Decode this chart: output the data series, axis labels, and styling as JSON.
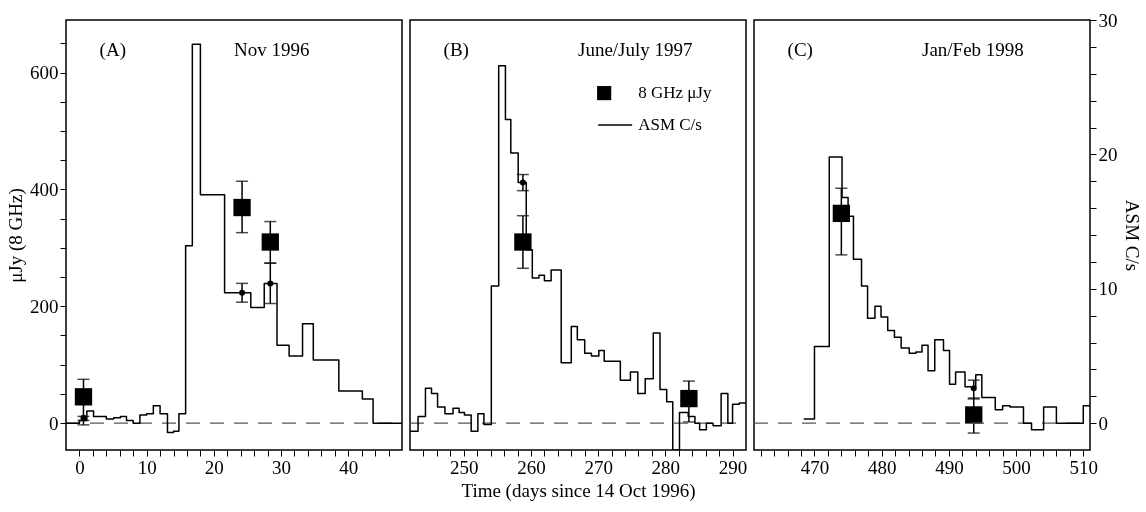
{
  "chart_data": [
    {
      "type": "step",
      "xlim": [
        -2,
        48
      ],
      "ylim": [
        -46,
        690
      ],
      "y2lim": [
        -2,
        30
      ],
      "ylabel": "μJy (8 GHz)",
      "grid": false,
      "legend": false,
      "xticks": [
        0,
        {
          "value": 2,
          "label": null
        },
        {
          "value": 4,
          "label": null
        },
        {
          "value": 6,
          "label": null
        },
        {
          "value": 8,
          "label": null
        },
        10,
        {
          "value": 12,
          "label": null
        },
        {
          "value": 14,
          "label": null
        },
        {
          "value": 16,
          "label": null
        },
        {
          "value": 18,
          "label": null
        },
        20,
        {
          "value": 22,
          "label": null
        },
        {
          "value": 24,
          "label": null
        },
        {
          "value": 26,
          "label": null
        },
        {
          "value": 28,
          "label": null
        },
        30,
        {
          "value": 32,
          "label": null
        },
        {
          "value": 34,
          "label": null
        },
        {
          "value": 36,
          "label": null
        },
        {
          "value": 38,
          "label": null
        },
        40,
        {
          "value": 42,
          "label": null
        },
        {
          "value": 44,
          "label": null
        },
        {
          "value": 46,
          "label": null
        }
      ],
      "yticks": [
        0,
        {
          "value": 50,
          "label": null
        },
        {
          "value": 100,
          "label": null
        },
        {
          "value": 150,
          "label": null
        },
        200,
        {
          "value": 250,
          "label": null
        },
        {
          "value": 300,
          "label": null
        },
        {
          "value": 350,
          "label": null
        },
        400,
        {
          "value": 450,
          "label": null
        },
        {
          "value": 500,
          "label": null
        },
        {
          "value": 550,
          "label": null
        },
        600,
        {
          "value": 650,
          "label": null
        }
      ],
      "annotations": [
        "(A)",
        "Nov 1996"
      ],
      "ref_lines": [
        {
          "axis": "y",
          "value": 0,
          "line_style": "dashed",
          "color": "#555555"
        }
      ],
      "series": [
        {
          "axis": "y2",
          "color": "#000000",
          "x": [
            -2,
            0,
            1.1,
            2.1,
            4,
            5.1,
            6.1,
            7,
            8,
            9,
            10,
            11,
            12,
            13.1,
            14,
            14.8,
            15.8,
            16.8,
            18,
            21.6,
            25.5,
            27.5,
            29.4,
            31.2,
            33.2,
            34.8,
            38.6,
            42.1,
            43.7,
            48
          ],
          "values": [
            0,
            0.2,
            0.9,
            0.5,
            0.3,
            0.4,
            0.5,
            0.2,
            0,
            0.6,
            0.7,
            1.3,
            0.7,
            -0.7,
            -0.6,
            0.7,
            13.2,
            28.2,
            17.0,
            9.7,
            8.6,
            10.4,
            5.8,
            5.0,
            7.4,
            4.7,
            2.4,
            1.8,
            0,
            0
          ]
        },
        {
          "type": "scatter",
          "axis": "y2",
          "marker": "circle",
          "color": "#000000",
          "x": [
            0.6,
            24.2,
            28.4
          ],
          "values": [
            0.4,
            9.7,
            10.4
          ],
          "errors": [
            [
              0.2,
              0.5
            ],
            [
              9.0,
              10.4
            ],
            [
              8.9,
              11.9
            ]
          ]
        },
        {
          "type": "scatter",
          "marker": "square",
          "color": "#000000",
          "x": [
            0.6,
            24.2,
            28.4
          ],
          "values": [
            45,
            369,
            310
          ],
          "errors": [
            [
              -3,
              75
            ],
            [
              326,
              414
            ],
            [
              274,
              345
            ]
          ]
        }
      ]
    },
    {
      "type": "step",
      "xlim": [
        242,
        292
      ],
      "ylim": [
        -46,
        690
      ],
      "y2lim": [
        -2,
        30
      ],
      "xlabel": "Time (days since 14 Oct 1996)",
      "grid": false,
      "legend": "top right",
      "tick_labels": "x",
      "xticks": [
        {
          "value": 244,
          "label": null
        },
        {
          "value": 246,
          "label": null
        },
        {
          "value": 248,
          "label": null
        },
        250,
        {
          "value": 252,
          "label": null
        },
        {
          "value": 254,
          "label": null
        },
        {
          "value": 256,
          "label": null
        },
        {
          "value": 258,
          "label": null
        },
        260,
        {
          "value": 262,
          "label": null
        },
        {
          "value": 264,
          "label": null
        },
        {
          "value": 266,
          "label": null
        },
        {
          "value": 268,
          "label": null
        },
        270,
        {
          "value": 272,
          "label": null
        },
        {
          "value": 274,
          "label": null
        },
        {
          "value": 276,
          "label": null
        },
        {
          "value": 278,
          "label": null
        },
        280,
        {
          "value": 282,
          "label": null
        },
        {
          "value": 284,
          "label": null
        },
        {
          "value": 286,
          "label": null
        },
        {
          "value": 288,
          "label": null
        },
        290
      ],
      "annotations": [
        "(B)",
        "June/July 1997"
      ],
      "ref_lines": [
        {
          "axis": "y",
          "value": 0,
          "line_style": "dashed",
          "color": "#555555"
        }
      ],
      "series": [
        {
          "name": "ASM C/s",
          "axis": "y2",
          "color": "#000000",
          "x": [
            242,
            243.2,
            244.3,
            245.2,
            246.1,
            247.2,
            248.4,
            249.3,
            250.1,
            251.1,
            252.1,
            253,
            254.1,
            255.2,
            256.2,
            257,
            258.1,
            259.3,
            260.2,
            261.2,
            262,
            263,
            264.5,
            266,
            266.9,
            268,
            269,
            270.1,
            270.9,
            273.3,
            274.8,
            275.9,
            277,
            278.2,
            279.2,
            280.2,
            281.1,
            282.1,
            283.4,
            284.4,
            285.1,
            286.1,
            287.1,
            288.3,
            289.3,
            290,
            291,
            292
          ],
          "values": [
            -0.6,
            0.5,
            2.6,
            2.2,
            1.2,
            0.7,
            1.1,
            0.8,
            0.6,
            -0.6,
            0.7,
            -0.1,
            10.2,
            26.6,
            22.6,
            20.1,
            17.9,
            12.9,
            10.8,
            11.0,
            10.6,
            11.4,
            4.5,
            7.2,
            6.2,
            5.2,
            5.0,
            5.4,
            4.6,
            3.2,
            3.8,
            2.2,
            3.3,
            6.7,
            2.5,
            1.6,
            -2,
            0.8,
            0.5,
            0,
            -0.5,
            0,
            -0.2,
            2.2,
            0,
            1.4,
            1.5,
            1.5
          ]
        },
        {
          "type": "scatter",
          "axis": "y2",
          "marker": "circle",
          "color": "#000000",
          "x": [
            258.8
          ],
          "values": [
            17.9
          ],
          "errors": [
            [
              17.3,
              18.5
            ]
          ]
        },
        {
          "type": "scatter",
          "name": "8 GHz μJy",
          "marker": "square",
          "color": "#000000",
          "x": [
            258.8,
            283.5
          ],
          "values": [
            310,
            42
          ],
          "errors": [
            [
              265,
              355
            ],
            [
              2,
              72
            ]
          ]
        }
      ]
    },
    {
      "type": "step",
      "xlim": [
        461,
        511
      ],
      "ylim": [
        -46,
        690
      ],
      "y2lim": [
        -2,
        30
      ],
      "y2label": "ASM C/s",
      "grid": false,
      "legend": false,
      "xticks": [
        {
          "value": 462,
          "label": null
        },
        {
          "value": 464,
          "label": null
        },
        {
          "value": 466,
          "label": null
        },
        {
          "value": 468,
          "label": null
        },
        470,
        {
          "value": 472,
          "label": null
        },
        {
          "value": 474,
          "label": null
        },
        {
          "value": 476,
          "label": null
        },
        {
          "value": 478,
          "label": null
        },
        480,
        {
          "value": 482,
          "label": null
        },
        {
          "value": 484,
          "label": null
        },
        {
          "value": 486,
          "label": null
        },
        {
          "value": 488,
          "label": null
        },
        490,
        {
          "value": 492,
          "label": null
        },
        {
          "value": 494,
          "label": null
        },
        {
          "value": 496,
          "label": null
        },
        {
          "value": 498,
          "label": null
        },
        500,
        {
          "value": 502,
          "label": null
        },
        {
          "value": 504,
          "label": null
        },
        {
          "value": 506,
          "label": null
        },
        {
          "value": 508,
          "label": null
        },
        510
      ],
      "y2ticks": [
        0,
        {
          "value": 2,
          "label": null
        },
        {
          "value": 4,
          "label": null
        },
        {
          "value": 6,
          "label": null
        },
        {
          "value": 8,
          "label": null
        },
        10,
        {
          "value": 12,
          "label": null
        },
        {
          "value": 14,
          "label": null
        },
        {
          "value": 16,
          "label": null
        },
        {
          "value": 18,
          "label": null
        },
        20,
        {
          "value": 22,
          "label": null
        },
        {
          "value": 24,
          "label": null
        },
        {
          "value": 26,
          "label": null
        },
        {
          "value": 28,
          "label": null
        },
        30
      ],
      "annotations": [
        "(C)",
        "Jan/Feb 1998"
      ],
      "ref_lines": [
        {
          "axis": "y",
          "value": 0,
          "line_style": "dashed",
          "color": "#555555"
        }
      ],
      "series": [
        {
          "axis": "y2",
          "color": "#000000",
          "x": [
            468.4,
            470,
            472.2,
            474.1,
            475,
            475.8,
            477,
            477.9,
            479,
            479.9,
            480.9,
            481.9,
            482.9,
            484.1,
            485.1,
            486,
            486.9,
            487.9,
            489.2,
            490.1,
            491,
            492.4,
            494,
            494.9,
            496.9,
            498,
            499.1,
            501.1,
            502.3,
            504.1,
            506,
            510,
            511
          ],
          "values": [
            0.3,
            5.7,
            19.8,
            16.8,
            15.4,
            12.2,
            10.2,
            7.8,
            8.7,
            7.9,
            6.9,
            6.4,
            5.6,
            5.2,
            5.3,
            5.8,
            3.9,
            6.2,
            5.4,
            2.9,
            3.8,
            2.7,
            3.6,
            1.9,
            1.0,
            1.3,
            1.2,
            0,
            -0.5,
            1.2,
            0,
            1.3,
            1.3
          ]
        },
        {
          "type": "scatter",
          "axis": "y2",
          "marker": "circle",
          "color": "#000000",
          "x": [
            493.7
          ],
          "values": [
            2.6
          ],
          "errors": [
            [
              1.8,
              3.2
            ]
          ]
        },
        {
          "type": "scatter",
          "marker": "square",
          "color": "#000000",
          "x": [
            474.0,
            493.7
          ],
          "values": [
            359,
            14
          ],
          "errors": [
            [
              288,
              402
            ],
            [
              -17,
              43
            ]
          ]
        }
      ]
    }
  ]
}
